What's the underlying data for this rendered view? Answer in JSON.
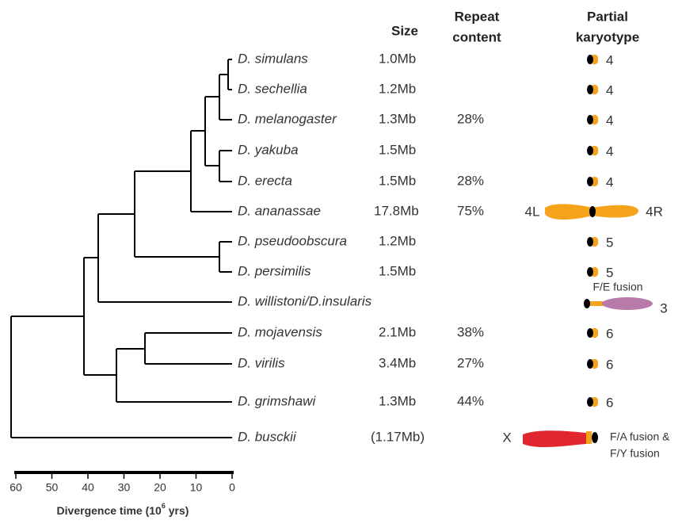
{
  "header": {
    "size": "Size",
    "repeat": [
      "Repeat",
      "content"
    ],
    "karyotype": [
      "Partial",
      "karyotype"
    ]
  },
  "species": [
    {
      "name": "D. simulans",
      "size": "1.0Mb",
      "karyotype": "4"
    },
    {
      "name": "D. sechellia",
      "size": "1.2Mb",
      "karyotype": "4"
    },
    {
      "name": "D. melanogaster",
      "size": "1.3Mb",
      "repeat": "28%",
      "karyotype": "4"
    },
    {
      "name": "D. yakuba",
      "size": "1.5Mb",
      "karyotype": "4"
    },
    {
      "name": "D. erecta",
      "size": "1.5Mb",
      "repeat": "28%",
      "karyotype": "4"
    },
    {
      "name": "D. ananassae",
      "size": "17.8Mb",
      "repeat": "75%",
      "karyotype_left": "4L",
      "karyotype_right": "4R"
    },
    {
      "name": "D. pseudoobscura",
      "size": "1.2Mb",
      "karyotype": "5"
    },
    {
      "name": "D. persimilis",
      "size": "1.5Mb",
      "karyotype": "5"
    },
    {
      "name": "D. willistoni/D.insularis",
      "karyotype": "3",
      "note": "F/E fusion"
    },
    {
      "name": "D. mojavensis",
      "size": "2.1Mb",
      "repeat": "38%",
      "karyotype": "6"
    },
    {
      "name": "D. virilis",
      "size": "3.4Mb",
      "repeat": "27%",
      "karyotype": "6"
    },
    {
      "name": "D. grimshawi",
      "size": "1.3Mb",
      "repeat": "44%",
      "karyotype": "6"
    },
    {
      "name": "D. busckii",
      "size": "(1.17Mb)",
      "karyotype_left": "X",
      "note": [
        "F/A fusion &",
        "F/Y fusion"
      ]
    }
  ],
  "axis": {
    "ticks": [
      60,
      50,
      40,
      30,
      20,
      10,
      0
    ],
    "label": [
      "Divergence time (10",
      "6",
      " yrs)"
    ]
  }
}
